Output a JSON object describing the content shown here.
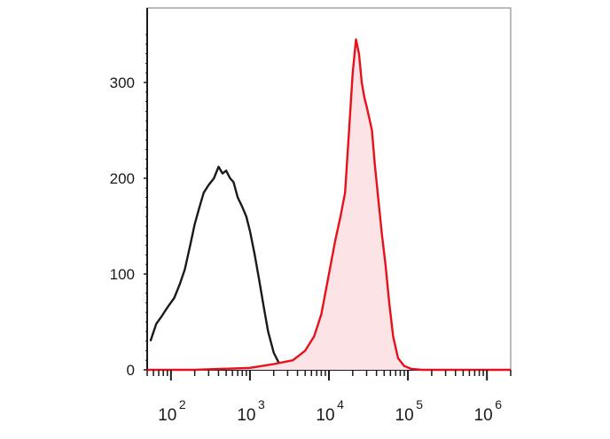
{
  "chart_data": {
    "type": "area",
    "x_scale": "log",
    "xlim": [
      50,
      2000000
    ],
    "ylim": [
      0,
      350
    ],
    "grid": false,
    "legend": "none",
    "y_ticks": [
      {
        "value": 0,
        "label": "0"
      },
      {
        "value": 100,
        "label": "100"
      },
      {
        "value": 200,
        "label": "200"
      },
      {
        "value": 300,
        "label": "300"
      }
    ],
    "x_major_ticks": [
      {
        "value": 100,
        "base": "10",
        "exp": "2"
      },
      {
        "value": 1000,
        "base": "10",
        "exp": "3"
      },
      {
        "value": 10000,
        "base": "10",
        "exp": "4"
      },
      {
        "value": 100000,
        "base": "10",
        "exp": "5"
      },
      {
        "value": 1000000,
        "base": "10",
        "exp": "6"
      }
    ],
    "series": [
      {
        "color": "#1a1a1a",
        "fill": "none",
        "x": [
          55,
          65,
          75,
          90,
          110,
          130,
          150,
          175,
          200,
          230,
          260,
          300,
          350,
          400,
          450,
          500,
          560,
          620,
          700,
          800,
          900,
          1000,
          1150,
          1300,
          1500,
          1700,
          2000,
          2300,
          2700,
          3200
        ],
        "y": [
          30,
          48,
          55,
          65,
          75,
          90,
          105,
          130,
          152,
          170,
          185,
          193,
          200,
          212,
          205,
          208,
          200,
          196,
          180,
          170,
          160,
          145,
          120,
          95,
          65,
          40,
          18,
          8,
          3,
          0
        ]
      },
      {
        "color": "#e8101a",
        "fill": "#fbe3e6",
        "x": [
          50,
          200,
          1000,
          2000,
          3500,
          5000,
          6500,
          8000,
          10000,
          12000,
          14000,
          16000,
          18000,
          20000,
          22000,
          24000,
          26000,
          28000,
          30000,
          32000,
          35000,
          38000,
          42000,
          47000,
          52000,
          58000,
          65000,
          75000,
          90000,
          110000,
          150000,
          300000,
          1000000,
          2000000
        ],
        "y": [
          0,
          0,
          2,
          6,
          10,
          20,
          35,
          58,
          100,
          135,
          160,
          185,
          250,
          310,
          345,
          330,
          300,
          285,
          275,
          265,
          250,
          215,
          180,
          140,
          110,
          70,
          35,
          12,
          4,
          1,
          0,
          0,
          0,
          0
        ]
      }
    ]
  }
}
